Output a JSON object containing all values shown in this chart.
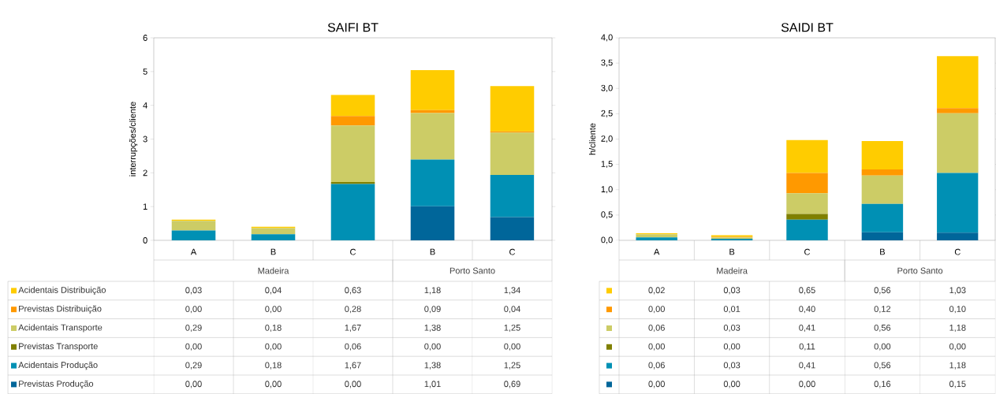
{
  "chart_data": [
    {
      "type": "bar",
      "title": "SAIFI BT",
      "ylabel": "interrupções/cliente",
      "stacked": true,
      "legend": "bottom",
      "categories": [
        "A",
        "B",
        "C",
        "B",
        "C"
      ],
      "annotations": [
        "Madeira",
        "Porto Santo"
      ],
      "ylim": [
        0,
        6
      ],
      "yticks": [
        0,
        1,
        2,
        3,
        4,
        5,
        6
      ],
      "series": [
        {
          "name": "Previstas Produção",
          "color": "#00669a",
          "values": [
            0.0,
            0.0,
            0.0,
            1.01,
            0.69
          ],
          "value_labels": [
            "0,00",
            "0,00",
            "0,00",
            "1,01",
            "0,69"
          ]
        },
        {
          "name": "Acidentais Produção",
          "color": "#0090b4",
          "values": [
            0.29,
            0.18,
            1.67,
            1.38,
            1.25
          ],
          "value_labels": [
            "0,29",
            "0,18",
            "1,67",
            "1,38",
            "1,25"
          ]
        },
        {
          "name": "Previstas Transporte",
          "color": "#808000",
          "values": [
            0.0,
            0.0,
            0.06,
            0.0,
            0.0
          ],
          "value_labels": [
            "0,00",
            "0,00",
            "0,06",
            "0,00",
            "0,00"
          ]
        },
        {
          "name": "Acidentais Transporte",
          "color": "#cccc66",
          "values": [
            0.29,
            0.18,
            1.67,
            1.38,
            1.25
          ],
          "value_labels": [
            "0,29",
            "0,18",
            "1,67",
            "1,38",
            "1,25"
          ]
        },
        {
          "name": "Previstas Distribuição",
          "color": "#ff9900",
          "values": [
            0.0,
            0.0,
            0.28,
            0.09,
            0.04
          ],
          "value_labels": [
            "0,00",
            "0,00",
            "0,28",
            "0,09",
            "0,04"
          ]
        },
        {
          "name": "Acidentais Distribuição",
          "color": "#ffcc00",
          "values": [
            0.03,
            0.04,
            0.63,
            1.18,
            1.34
          ],
          "value_labels": [
            "0,03",
            "0,04",
            "0,63",
            "1,18",
            "1,34"
          ]
        }
      ]
    },
    {
      "type": "bar",
      "title": "SAIDI BT",
      "ylabel": "h/cliente",
      "stacked": true,
      "categories": [
        "A",
        "B",
        "C",
        "B",
        "C"
      ],
      "annotations": [
        "Madeira",
        "Porto Santo"
      ],
      "ylim": [
        0,
        4
      ],
      "yticks": [
        {
          "value": 0,
          "label": "0,0"
        },
        {
          "value": 0.5,
          "label": "0,5"
        },
        {
          "value": 1,
          "label": "1,0"
        },
        {
          "value": 1.5,
          "label": "1,5"
        },
        {
          "value": 2,
          "label": "2,0"
        },
        {
          "value": 2.5,
          "label": "2,5"
        },
        {
          "value": 3,
          "label": "3,0"
        },
        {
          "value": 3.5,
          "label": "3,5"
        },
        {
          "value": 4,
          "label": "4,0"
        }
      ],
      "series": [
        {
          "color": "#00669a",
          "values": [
            0.0,
            0.0,
            0.0,
            0.16,
            0.15
          ],
          "value_labels": [
            "0,00",
            "0,00",
            "0,00",
            "0,16",
            "0,15"
          ]
        },
        {
          "color": "#0090b4",
          "values": [
            0.06,
            0.03,
            0.41,
            0.56,
            1.18
          ],
          "value_labels": [
            "0,06",
            "0,03",
            "0,41",
            "0,56",
            "1,18"
          ]
        },
        {
          "color": "#808000",
          "values": [
            0.0,
            0.0,
            0.11,
            0.0,
            0.0
          ],
          "value_labels": [
            "0,00",
            "0,00",
            "0,11",
            "0,00",
            "0,00"
          ]
        },
        {
          "color": "#cccc66",
          "values": [
            0.06,
            0.03,
            0.41,
            0.56,
            1.18
          ],
          "value_labels": [
            "0,06",
            "0,03",
            "0,41",
            "0,56",
            "1,18"
          ]
        },
        {
          "color": "#ff9900",
          "values": [
            0.0,
            0.01,
            0.4,
            0.12,
            0.1
          ],
          "value_labels": [
            "0,00",
            "0,01",
            "0,40",
            "0,12",
            "0,10"
          ]
        },
        {
          "color": "#ffcc00",
          "values": [
            0.02,
            0.03,
            0.65,
            0.56,
            1.03
          ],
          "value_labels": [
            "0,02",
            "0,03",
            "0,65",
            "0,56",
            "1,03"
          ]
        }
      ]
    }
  ]
}
